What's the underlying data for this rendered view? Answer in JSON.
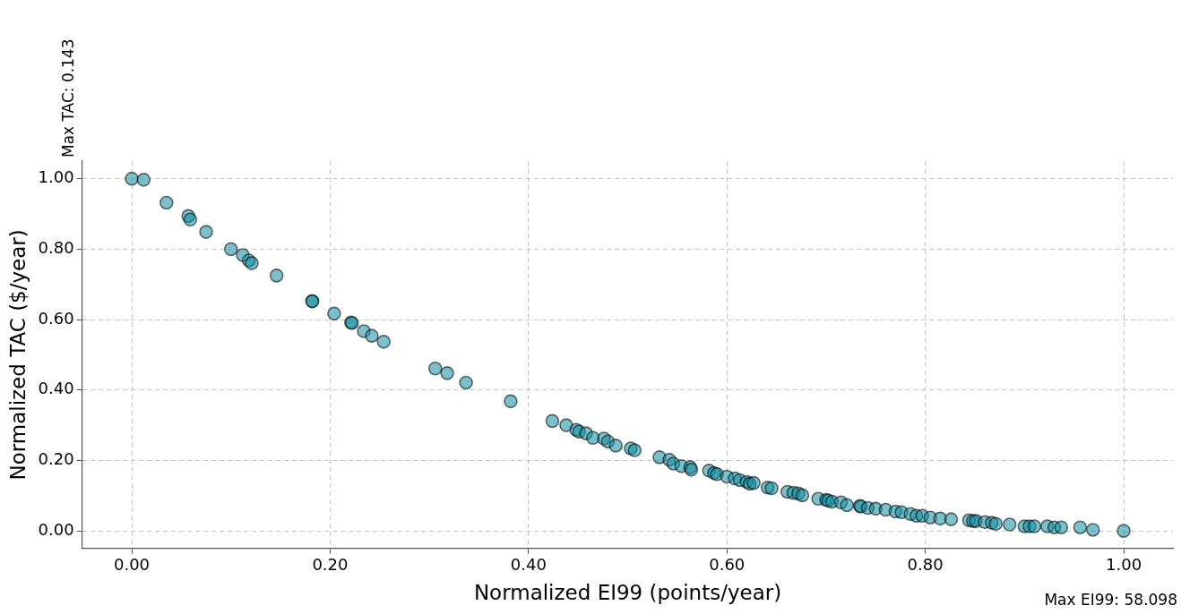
{
  "chart_data": {
    "type": "scatter",
    "xlabel": "Normalized EI99 (points/year)",
    "ylabel": "Normalized TAC ($/year)",
    "annotations": [
      "Max TAC: 0.143",
      "Max EI99: 58.098"
    ],
    "xlim": [
      -0.05,
      1.05
    ],
    "ylim": [
      -0.05,
      1.05
    ],
    "xticks": [
      {
        "value": 0,
        "label": "0.00"
      },
      {
        "value": 0.2,
        "label": "0.20"
      },
      {
        "value": 0.4,
        "label": "0.40"
      },
      {
        "value": 0.6,
        "label": "0.60"
      },
      {
        "value": 0.8,
        "label": "0.80"
      },
      {
        "value": 1,
        "label": "1.00"
      }
    ],
    "yticks": [
      {
        "value": 0,
        "label": "0.00"
      },
      {
        "value": 0.2,
        "label": "0.20"
      },
      {
        "value": 0.4,
        "label": "0.40"
      },
      {
        "value": 0.6,
        "label": "0.60"
      },
      {
        "value": 0.8,
        "label": "0.80"
      },
      {
        "value": 1,
        "label": "1.00"
      }
    ],
    "grid": true,
    "marker": "circle",
    "series": [
      {
        "color": "#0f8ca0",
        "x": [
          0,
          0.012,
          0.035,
          0.057,
          0.059,
          0.075,
          0.1,
          0.112,
          0.118,
          0.121,
          0.146,
          0.182,
          0.182,
          0.204,
          0.221,
          0.222,
          0.234,
          0.242,
          0.254,
          0.306,
          0.318,
          0.337,
          0.382,
          0.424,
          0.438,
          0.448,
          0.451,
          0.458,
          0.465,
          0.476,
          0.48,
          0.488,
          0.503,
          0.507,
          0.532,
          0.542,
          0.546,
          0.554,
          0.563,
          0.564,
          0.582,
          0.587,
          0.59,
          0.6,
          0.608,
          0.613,
          0.62,
          0.623,
          0.627,
          0.641,
          0.643,
          0.645,
          0.661,
          0.667,
          0.672,
          0.676,
          0.692,
          0.7,
          0.702,
          0.706,
          0.715,
          0.721,
          0.734,
          0.735,
          0.742,
          0.75,
          0.76,
          0.77,
          0.776,
          0.785,
          0.791,
          0.797,
          0.805,
          0.815,
          0.826,
          0.844,
          0.848,
          0.851,
          0.86,
          0.867,
          0.871,
          0.885,
          0.9,
          0.905,
          0.91,
          0.923,
          0.93,
          0.937,
          0.956,
          0.969,
          1
        ],
        "values": [
          1,
          0.997,
          0.932,
          0.894,
          0.884,
          0.849,
          0.8,
          0.783,
          0.768,
          0.76,
          0.725,
          0.652,
          0.652,
          0.617,
          0.592,
          0.59,
          0.567,
          0.554,
          0.537,
          0.461,
          0.448,
          0.421,
          0.368,
          0.312,
          0.3,
          0.287,
          0.282,
          0.277,
          0.264,
          0.262,
          0.254,
          0.242,
          0.234,
          0.229,
          0.209,
          0.202,
          0.191,
          0.184,
          0.181,
          0.174,
          0.171,
          0.164,
          0.161,
          0.154,
          0.149,
          0.144,
          0.139,
          0.134,
          0.136,
          0.123,
          null,
          0.121,
          0.111,
          0.108,
          0.106,
          0.101,
          0.091,
          0.088,
          0.086,
          0.083,
          0.081,
          0.073,
          0.071,
          0.069,
          0.065,
          0.063,
          0.06,
          0.055,
          0.053,
          0.048,
          0.043,
          0.043,
          0.038,
          0.035,
          0.033,
          0.03,
          0.028,
          0.028,
          0.025,
          0.023,
          0.02,
          0.018,
          0.013,
          0.013,
          0.013,
          0.013,
          0.01,
          0.01,
          0.01,
          0.003,
          0
        ]
      }
    ]
  }
}
